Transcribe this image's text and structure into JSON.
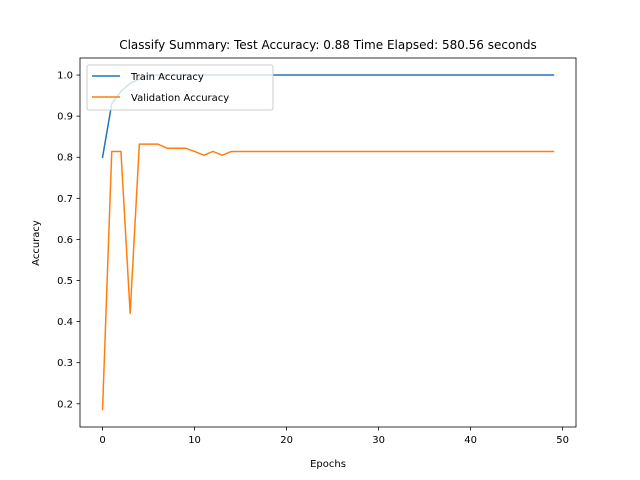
{
  "chart_data": {
    "type": "line",
    "title": "Classify Summary: Test Accuracy: 0.88 Time Elapsed: 580.56 seconds",
    "xlabel": "Epochs",
    "ylabel": "Accuracy",
    "xlim": [
      -2.45,
      51.45
    ],
    "ylim": [
      0.1435,
      1.0415
    ],
    "xticks": [
      0,
      10,
      20,
      30,
      40,
      50
    ],
    "yticks": [
      0.2,
      0.3,
      0.4,
      0.5,
      0.6,
      0.7,
      0.8,
      0.9,
      1.0
    ],
    "ytick_labels": [
      "0.2",
      "0.3",
      "0.4",
      "0.5",
      "0.6",
      "0.7",
      "0.8",
      "0.9",
      "1.0"
    ],
    "grid": false,
    "legend_position": "upper left",
    "x": [
      0,
      1,
      2,
      3,
      4,
      5,
      6,
      7,
      8,
      9,
      10,
      11,
      12,
      13,
      14,
      15,
      16,
      17,
      18,
      19,
      20,
      21,
      22,
      23,
      24,
      25,
      26,
      27,
      28,
      29,
      30,
      31,
      32,
      33,
      34,
      35,
      36,
      37,
      38,
      39,
      40,
      41,
      42,
      43,
      44,
      45,
      46,
      47,
      48,
      49
    ],
    "series": [
      {
        "name": "Train Accuracy",
        "color": "#1f77b4",
        "values": [
          0.8,
          0.93,
          0.96,
          0.98,
          0.99,
          1.0,
          1.0,
          1.0,
          1.0,
          1.0,
          1.0,
          1.0,
          1.0,
          1.0,
          1.0,
          1.0,
          1.0,
          1.0,
          1.0,
          1.0,
          1.0,
          1.0,
          1.0,
          1.0,
          1.0,
          1.0,
          1.0,
          1.0,
          1.0,
          1.0,
          1.0,
          1.0,
          1.0,
          1.0,
          1.0,
          1.0,
          1.0,
          1.0,
          1.0,
          1.0,
          1.0,
          1.0,
          1.0,
          1.0,
          1.0,
          1.0,
          1.0,
          1.0,
          1.0,
          1.0
        ]
      },
      {
        "name": "Validation Accuracy",
        "color": "#ff7f0e",
        "values": [
          0.186,
          0.814,
          0.814,
          0.42,
          0.832,
          0.832,
          0.832,
          0.822,
          0.822,
          0.822,
          0.814,
          0.805,
          0.814,
          0.805,
          0.814,
          0.814,
          0.814,
          0.814,
          0.814,
          0.814,
          0.814,
          0.814,
          0.814,
          0.814,
          0.814,
          0.814,
          0.814,
          0.814,
          0.814,
          0.814,
          0.814,
          0.814,
          0.814,
          0.814,
          0.814,
          0.814,
          0.814,
          0.814,
          0.814,
          0.814,
          0.814,
          0.814,
          0.814,
          0.814,
          0.814,
          0.814,
          0.814,
          0.814,
          0.814,
          0.814
        ]
      }
    ]
  }
}
